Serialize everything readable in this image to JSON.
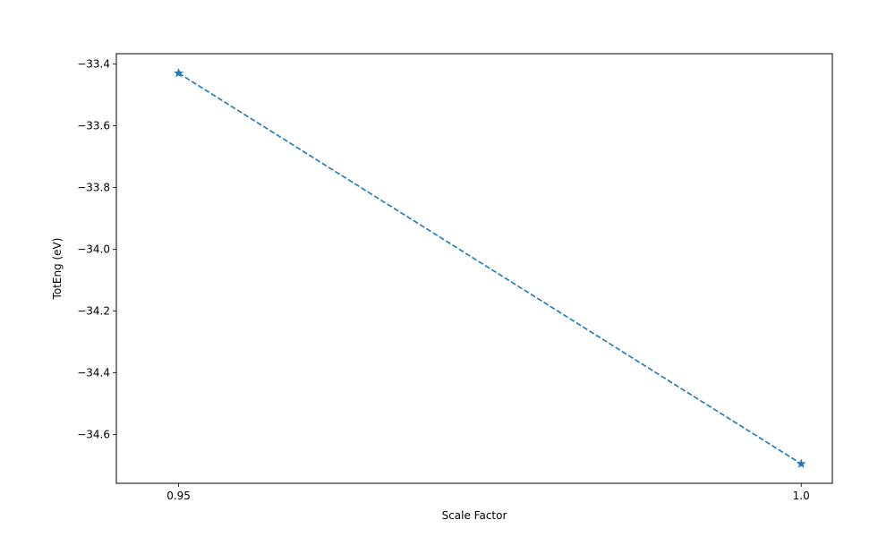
{
  "chart_data": {
    "type": "line",
    "title": "",
    "xlabel": "Scale Factor",
    "ylabel": "TotEng (eV)",
    "x": [
      0.95,
      1.0
    ],
    "series": [
      {
        "values": [
          -33.43,
          -34.695
        ],
        "color": "#1f77b4",
        "line_style": "dashed",
        "marker": "star"
      }
    ],
    "xlim": [
      0.945,
      1.0025
    ],
    "ylim": [
      -34.758,
      -33.367
    ],
    "xticks": [
      0.95,
      1.0
    ],
    "xtick_labels": [
      "0.95",
      "1.0"
    ],
    "yticks": [
      -34.6,
      -34.4,
      -34.2,
      -34.0,
      -33.8,
      -33.6,
      -33.4
    ],
    "ytick_labels": [
      "−34.6",
      "−34.4",
      "−34.2",
      "−34.0",
      "−33.8",
      "−33.6",
      "−33.4"
    ],
    "grid": false,
    "legend": "none"
  }
}
